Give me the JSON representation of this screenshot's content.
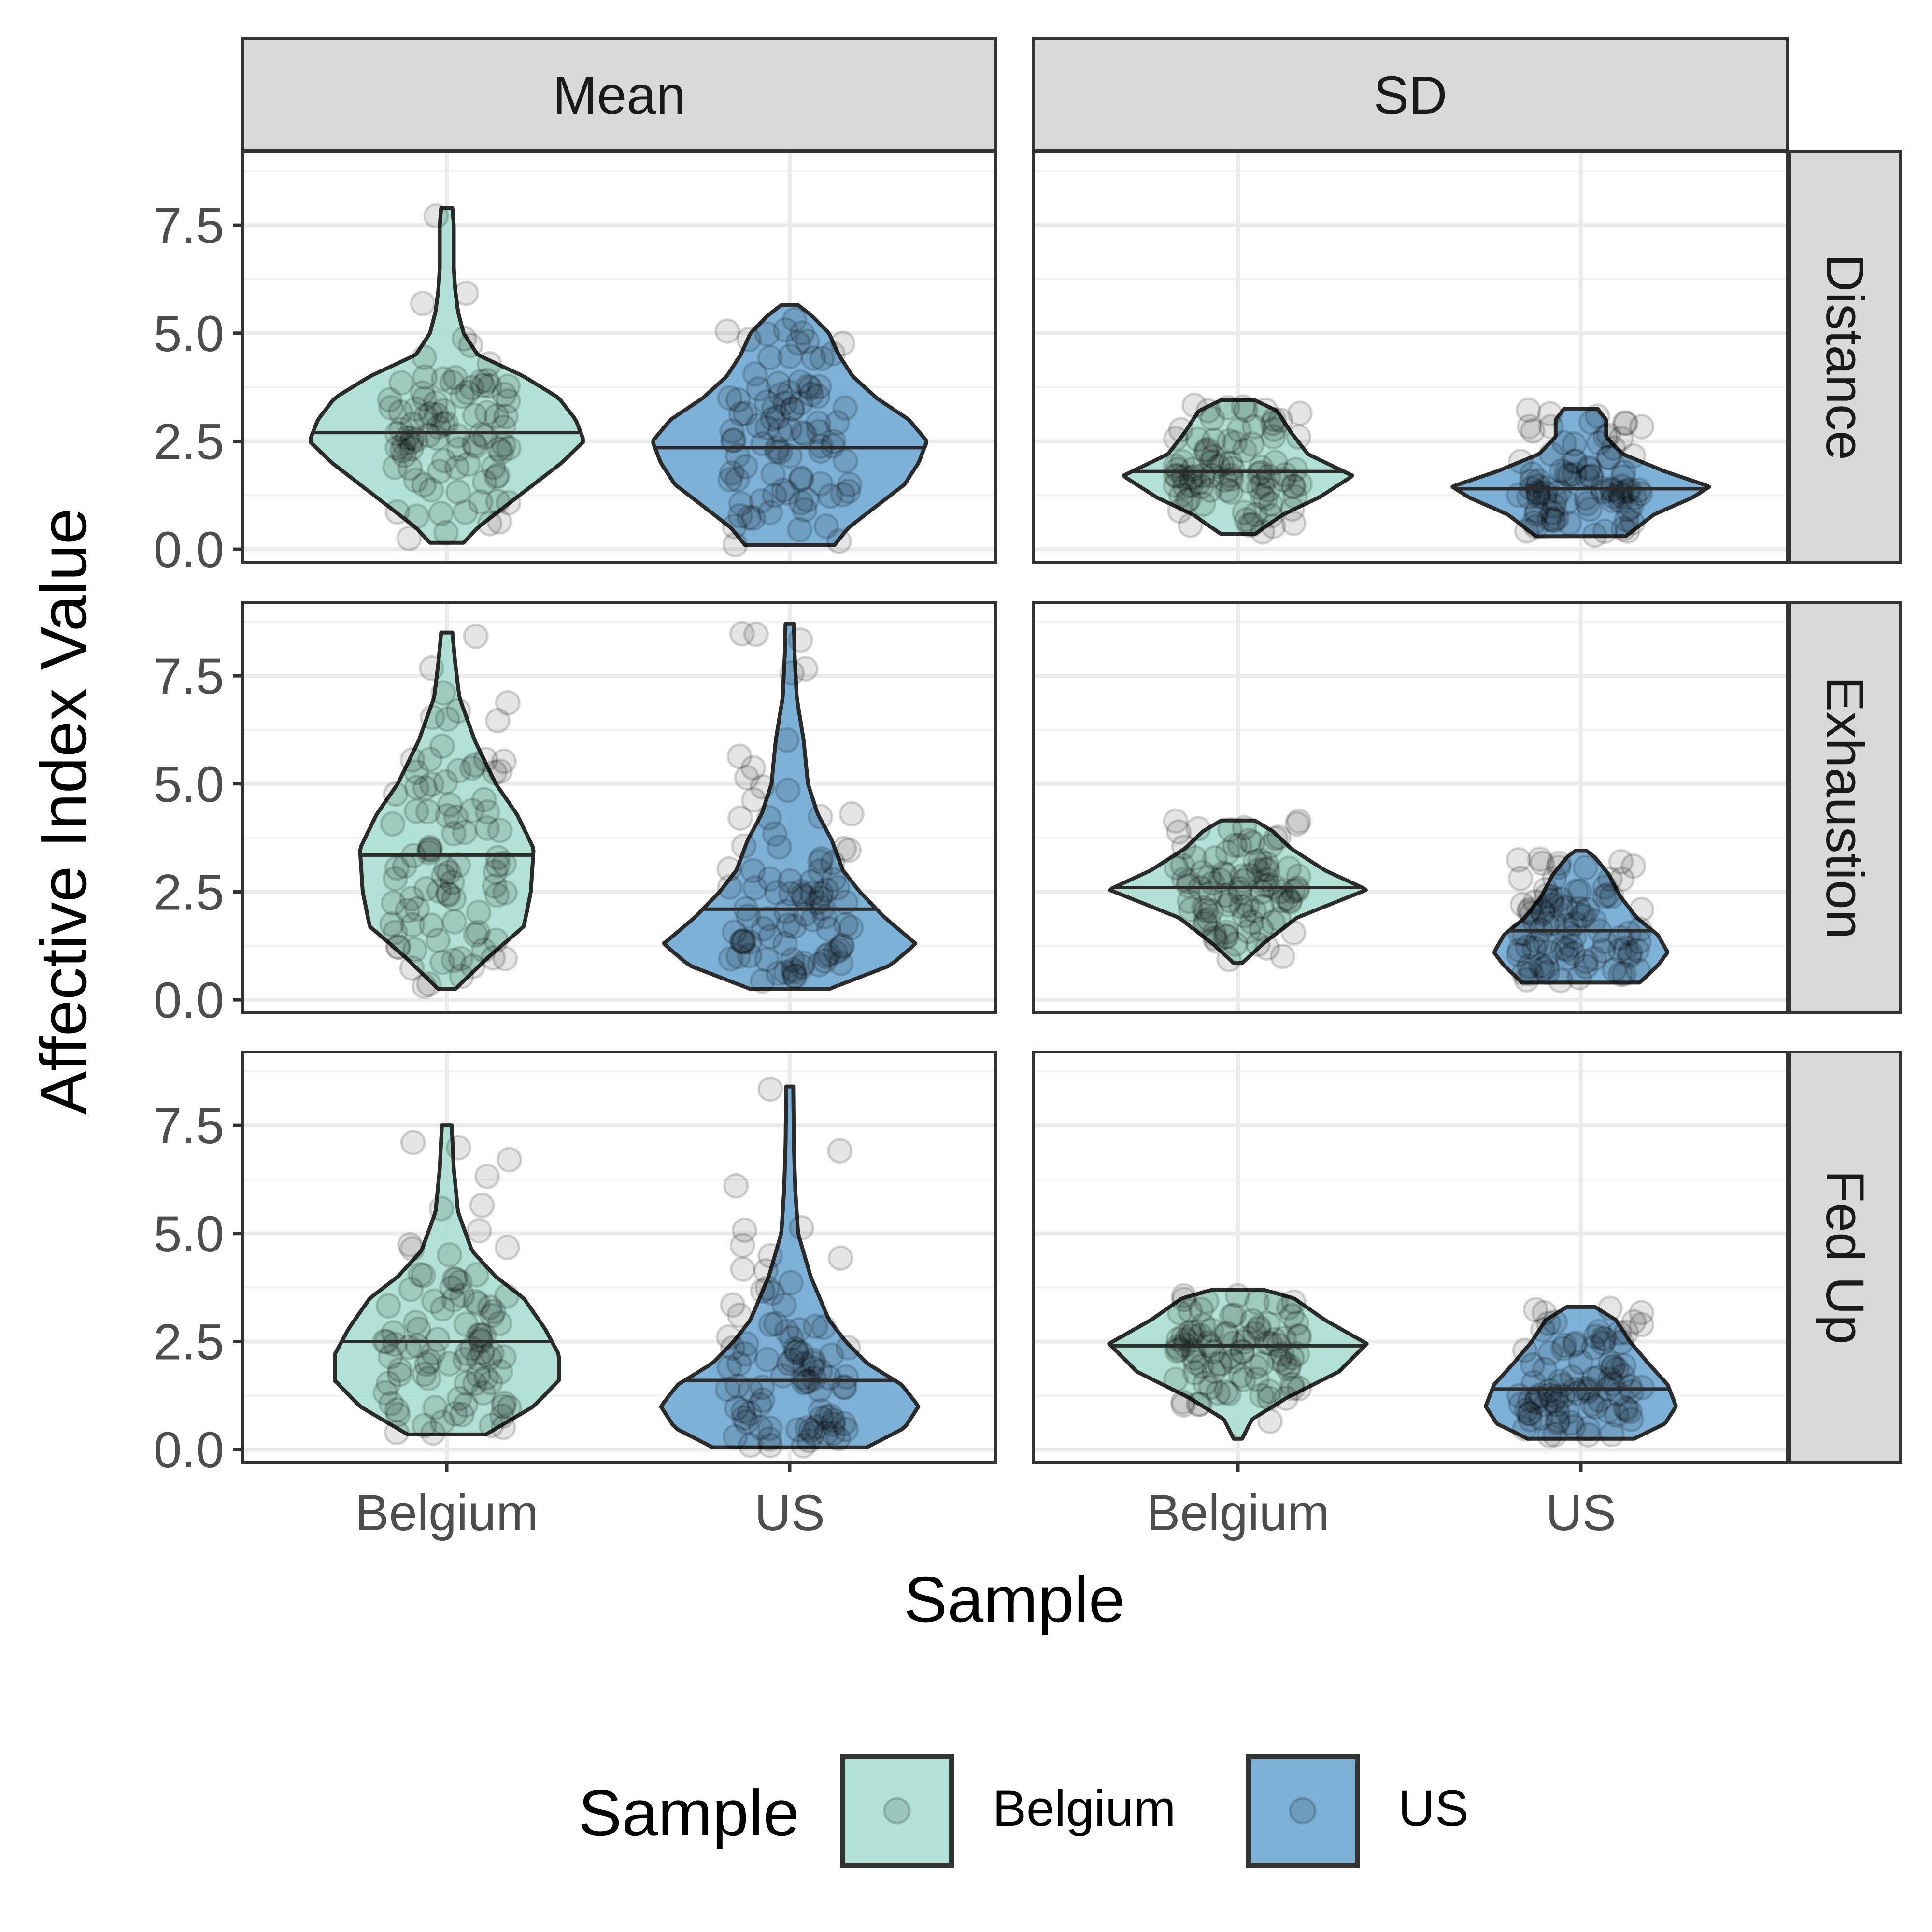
{
  "chart_data": {
    "type": "violin",
    "xlabel": "Sample",
    "ylabel": "Affective Index Value",
    "categories": [
      "Belgium",
      "US"
    ],
    "facet_columns": [
      "Mean",
      "SD"
    ],
    "facet_rows": [
      "Distance",
      "Exhaustion",
      "Fed Up"
    ],
    "y_ticks": [
      "0.0",
      "2.5",
      "5.0",
      "7.5"
    ],
    "ylim": [
      -0.3,
      9.2
    ],
    "grid": true,
    "legend": {
      "title": "Sample",
      "placement": "bottom",
      "items": [
        {
          "label": "Belgium",
          "color": "#a8dfd0"
        },
        {
          "label": "US",
          "color": "#6fa8d4"
        }
      ]
    },
    "violins": [
      {
        "row": "Distance",
        "col": "Mean",
        "group": "Belgium",
        "median": 2.7,
        "profile": [
          [
            0.15,
            0.12
          ],
          [
            0.5,
            0.22
          ],
          [
            1.0,
            0.42
          ],
          [
            1.5,
            0.62
          ],
          [
            2.0,
            0.82
          ],
          [
            2.5,
            0.98
          ],
          [
            3.0,
            0.92
          ],
          [
            3.5,
            0.8
          ],
          [
            4.0,
            0.55
          ],
          [
            4.5,
            0.22
          ],
          [
            5.0,
            0.12
          ],
          [
            5.5,
            0.08
          ],
          [
            6.0,
            0.06
          ],
          [
            6.5,
            0.05
          ],
          [
            7.0,
            0.05
          ],
          [
            7.5,
            0.05
          ],
          [
            7.9,
            0.04
          ]
        ]
      },
      {
        "row": "Distance",
        "col": "Mean",
        "group": "US",
        "median": 2.35,
        "profile": [
          [
            0.1,
            0.32
          ],
          [
            0.5,
            0.42
          ],
          [
            1.0,
            0.62
          ],
          [
            1.5,
            0.82
          ],
          [
            2.0,
            0.92
          ],
          [
            2.5,
            0.98
          ],
          [
            3.0,
            0.85
          ],
          [
            3.5,
            0.62
          ],
          [
            4.0,
            0.45
          ],
          [
            4.5,
            0.35
          ],
          [
            5.0,
            0.28
          ],
          [
            5.4,
            0.16
          ],
          [
            5.65,
            0.06
          ]
        ]
      },
      {
        "row": "Distance",
        "col": "SD",
        "group": "Belgium",
        "median": 1.8,
        "profile": [
          [
            0.35,
            0.12
          ],
          [
            0.8,
            0.32
          ],
          [
            1.2,
            0.58
          ],
          [
            1.7,
            0.82
          ],
          [
            2.2,
            0.5
          ],
          [
            2.7,
            0.38
          ],
          [
            3.2,
            0.28
          ],
          [
            3.45,
            0.12
          ]
        ]
      },
      {
        "row": "Distance",
        "col": "SD",
        "group": "US",
        "median": 1.4,
        "profile": [
          [
            0.3,
            0.32
          ],
          [
            0.8,
            0.52
          ],
          [
            1.2,
            0.8
          ],
          [
            1.45,
            0.92
          ],
          [
            1.8,
            0.6
          ],
          [
            2.2,
            0.3
          ],
          [
            2.6,
            0.18
          ],
          [
            3.0,
            0.18
          ],
          [
            3.25,
            0.12
          ]
        ]
      },
      {
        "row": "Exhaustion",
        "col": "Mean",
        "group": "Belgium",
        "median": 3.35,
        "profile": [
          [
            0.25,
            0.06
          ],
          [
            1.0,
            0.3
          ],
          [
            1.7,
            0.55
          ],
          [
            2.5,
            0.6
          ],
          [
            3.5,
            0.62
          ],
          [
            4.3,
            0.5
          ],
          [
            5.0,
            0.35
          ],
          [
            6.0,
            0.2
          ],
          [
            7.0,
            0.09
          ],
          [
            7.8,
            0.06
          ],
          [
            8.5,
            0.04
          ]
        ]
      },
      {
        "row": "Exhaustion",
        "col": "Mean",
        "group": "US",
        "median": 2.1,
        "profile": [
          [
            0.25,
            0.28
          ],
          [
            0.8,
            0.72
          ],
          [
            1.3,
            0.9
          ],
          [
            1.9,
            0.68
          ],
          [
            2.5,
            0.5
          ],
          [
            3.0,
            0.38
          ],
          [
            3.7,
            0.3
          ],
          [
            4.3,
            0.2
          ],
          [
            5.0,
            0.13
          ],
          [
            6.0,
            0.1
          ],
          [
            7.0,
            0.05
          ],
          [
            8.0,
            0.035
          ],
          [
            8.7,
            0.03
          ]
        ]
      },
      {
        "row": "Exhaustion",
        "col": "SD",
        "group": "Belgium",
        "median": 2.6,
        "profile": [
          [
            0.85,
            0.03
          ],
          [
            1.3,
            0.18
          ],
          [
            1.9,
            0.42
          ],
          [
            2.55,
            0.92
          ],
          [
            3.0,
            0.62
          ],
          [
            3.5,
            0.38
          ],
          [
            3.9,
            0.25
          ],
          [
            4.15,
            0.12
          ]
        ]
      },
      {
        "row": "Exhaustion",
        "col": "SD",
        "group": "US",
        "median": 1.6,
        "profile": [
          [
            0.4,
            0.42
          ],
          [
            0.8,
            0.55
          ],
          [
            1.1,
            0.62
          ],
          [
            1.5,
            0.55
          ],
          [
            1.9,
            0.4
          ],
          [
            2.4,
            0.28
          ],
          [
            2.9,
            0.2
          ],
          [
            3.3,
            0.1
          ],
          [
            3.45,
            0.04
          ]
        ]
      },
      {
        "row": "Fed Up",
        "col": "Mean",
        "group": "Belgium",
        "median": 2.5,
        "profile": [
          [
            0.35,
            0.28
          ],
          [
            1.0,
            0.62
          ],
          [
            1.6,
            0.8
          ],
          [
            2.2,
            0.8
          ],
          [
            2.8,
            0.7
          ],
          [
            3.5,
            0.55
          ],
          [
            4.0,
            0.35
          ],
          [
            4.6,
            0.18
          ],
          [
            5.5,
            0.08
          ],
          [
            6.5,
            0.05
          ],
          [
            7.5,
            0.035
          ]
        ]
      },
      {
        "row": "Fed Up",
        "col": "Mean",
        "group": "US",
        "median": 1.6,
        "profile": [
          [
            0.05,
            0.55
          ],
          [
            0.5,
            0.82
          ],
          [
            1.0,
            0.92
          ],
          [
            1.5,
            0.8
          ],
          [
            2.0,
            0.55
          ],
          [
            2.5,
            0.4
          ],
          [
            3.0,
            0.28
          ],
          [
            4.0,
            0.15
          ],
          [
            5.0,
            0.06
          ],
          [
            6.0,
            0.04
          ],
          [
            7.0,
            0.03
          ],
          [
            8.4,
            0.025
          ]
        ]
      },
      {
        "row": "Fed Up",
        "col": "SD",
        "group": "Belgium",
        "median": 2.4,
        "profile": [
          [
            0.25,
            0.03
          ],
          [
            0.7,
            0.1
          ],
          [
            1.2,
            0.35
          ],
          [
            1.8,
            0.72
          ],
          [
            2.45,
            0.92
          ],
          [
            3.0,
            0.62
          ],
          [
            3.5,
            0.4
          ],
          [
            3.7,
            0.18
          ]
        ]
      },
      {
        "row": "Fed Up",
        "col": "SD",
        "group": "US",
        "median": 1.4,
        "profile": [
          [
            0.25,
            0.38
          ],
          [
            0.6,
            0.6
          ],
          [
            1.0,
            0.68
          ],
          [
            1.5,
            0.62
          ],
          [
            2.0,
            0.48
          ],
          [
            2.5,
            0.35
          ],
          [
            3.0,
            0.25
          ],
          [
            3.3,
            0.1
          ]
        ]
      }
    ]
  }
}
